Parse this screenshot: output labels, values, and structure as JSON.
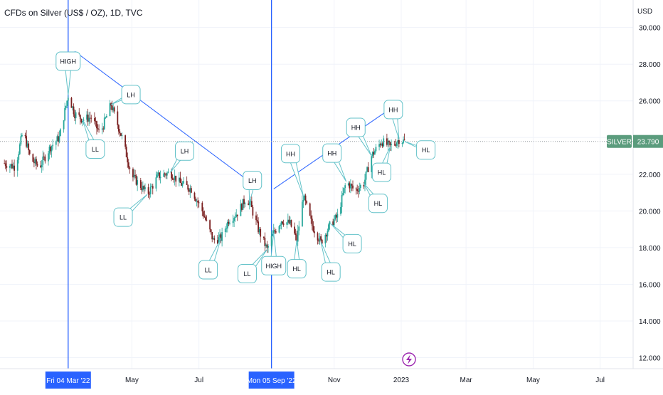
{
  "header": {
    "title": "CFDs on Silver (US$ / OZ), 1D, TVC"
  },
  "price_axis": {
    "unit": "USD",
    "ticks": [
      "30.000",
      "28.000",
      "26.000",
      "24.000",
      "22.000",
      "20.000",
      "18.000",
      "16.000",
      "14.000",
      "12.000"
    ],
    "symbol_badge": "SILVER",
    "last_price": "23.790",
    "badge_color": "#5b9c7d"
  },
  "time_axis": {
    "ticks": [
      "May",
      "Jul",
      "Nov",
      "2023",
      "Mar",
      "May",
      "Jul"
    ],
    "highlight_labels": [
      "Fri 04 Mar '22",
      "Mon 05 Sep '22"
    ],
    "highlight_color": "#2962ff"
  },
  "colors": {
    "up": "#26a69a",
    "down": "#7a1f1f",
    "line": "#2962ff",
    "callout": "#63c2c9"
  },
  "chart_data": {
    "type": "candlestick",
    "title": "CFDs on Silver (US$ / OZ), 1D, TVC",
    "ylabel": "USD",
    "ylim": [
      11.4,
      31.5
    ],
    "xlim": [
      "2022-01-01",
      "2023-07-31"
    ],
    "last_price": 23.79,
    "close_series": [
      [
        "2022-01-05",
        22.6
      ],
      [
        "2022-01-15",
        22.4
      ],
      [
        "2022-01-22",
        24.4
      ],
      [
        "2022-01-29",
        22.8
      ],
      [
        "2022-02-06",
        22.4
      ],
      [
        "2022-02-16",
        23.5
      ],
      [
        "2022-02-24",
        24.0
      ],
      [
        "2022-03-04",
        26.3
      ],
      [
        "2022-03-10",
        25.3
      ],
      [
        "2022-03-17",
        25.0
      ],
      [
        "2022-03-25",
        25.1
      ],
      [
        "2022-04-02",
        24.2
      ],
      [
        "2022-04-12",
        25.8
      ],
      [
        "2022-04-22",
        24.0
      ],
      [
        "2022-05-01",
        21.9
      ],
      [
        "2022-05-10",
        21.3
      ],
      [
        "2022-05-15",
        20.9
      ],
      [
        "2022-05-25",
        21.9
      ],
      [
        "2022-06-05",
        22.1
      ],
      [
        "2022-06-14",
        21.5
      ],
      [
        "2022-06-24",
        21.2
      ],
      [
        "2022-07-04",
        20.0
      ],
      [
        "2022-07-14",
        18.4
      ],
      [
        "2022-07-21",
        18.5
      ],
      [
        "2022-07-28",
        19.5
      ],
      [
        "2022-08-05",
        19.9
      ],
      [
        "2022-08-12",
        20.6
      ],
      [
        "2022-08-16",
        20.5
      ],
      [
        "2022-08-24",
        19.0
      ],
      [
        "2022-09-01",
        17.9
      ],
      [
        "2022-09-07",
        18.8
      ],
      [
        "2022-09-14",
        19.5
      ],
      [
        "2022-09-22",
        19.3
      ],
      [
        "2022-09-28",
        18.4
      ],
      [
        "2022-10-04",
        20.8
      ],
      [
        "2022-10-12",
        19.2
      ],
      [
        "2022-10-20",
        18.3
      ],
      [
        "2022-10-29",
        19.3
      ],
      [
        "2022-11-04",
        19.7
      ],
      [
        "2022-11-12",
        21.6
      ],
      [
        "2022-11-20",
        21.1
      ],
      [
        "2022-11-28",
        21.5
      ],
      [
        "2022-12-05",
        23.0
      ],
      [
        "2022-12-14",
        23.8
      ],
      [
        "2022-12-22",
        23.5
      ],
      [
        "2022-12-30",
        23.9
      ],
      [
        "2023-01-04",
        23.79
      ]
    ],
    "annotations": [
      {
        "label": "HIGH",
        "x": "2022-03-04",
        "y": 26.3
      },
      {
        "label": "LH",
        "x": "2022-04-12",
        "y": 25.8
      },
      {
        "label": "LL",
        "x": "2022-03-17",
        "y": 25.0
      },
      {
        "label": "LL",
        "x": "2022-05-15",
        "y": 20.9
      },
      {
        "label": "LH",
        "x": "2022-06-05",
        "y": 22.1
      },
      {
        "label": "LL",
        "x": "2022-07-21",
        "y": 18.5
      },
      {
        "label": "LL",
        "x": "2022-09-01",
        "y": 17.9
      },
      {
        "label": "LH",
        "x": "2022-08-16",
        "y": 20.5
      },
      {
        "label": "HIGH",
        "x": "2022-09-07",
        "y": 18.8
      },
      {
        "label": "HH",
        "x": "2022-10-04",
        "y": 20.8
      },
      {
        "label": "HL",
        "x": "2022-09-28",
        "y": 18.4
      },
      {
        "label": "HH",
        "x": "2022-11-12",
        "y": 21.6
      },
      {
        "label": "HL",
        "x": "2022-10-20",
        "y": 18.3
      },
      {
        "label": "HL",
        "x": "2022-10-29",
        "y": 19.3
      },
      {
        "label": "HH",
        "x": "2022-12-05",
        "y": 23.0
      },
      {
        "label": "HL",
        "x": "2022-11-28",
        "y": 21.5
      },
      {
        "label": "HH",
        "x": "2022-12-30",
        "y": 23.9
      },
      {
        "label": "HL",
        "x": "2022-12-22",
        "y": 23.5
      },
      {
        "label": "HL",
        "x": "2023-01-04",
        "y": 23.79
      }
    ],
    "trendlines": [
      {
        "from": [
          "2022-03-10",
          28.7
        ],
        "to": [
          "2022-08-16",
          21.6
        ]
      },
      {
        "from": [
          "2022-09-07",
          21.2
        ],
        "to": [
          "2022-12-18",
          25.4
        ]
      }
    ],
    "vertical_markers": [
      "2022-03-04",
      "2022-09-05"
    ]
  }
}
